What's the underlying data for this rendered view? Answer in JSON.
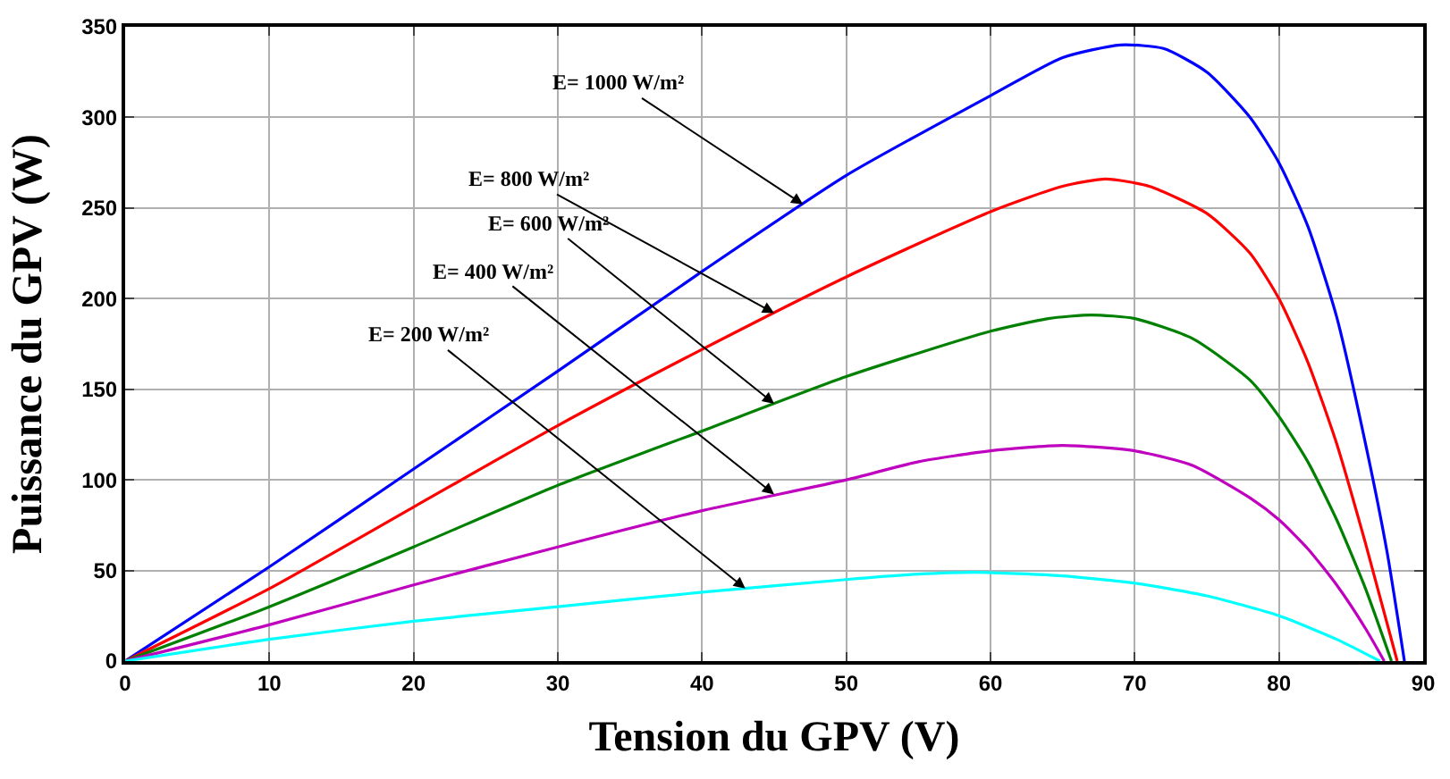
{
  "chart_data": {
    "type": "line",
    "xlabel": "Tension du GPV (V)",
    "ylabel": "Puissance du GPV (W)",
    "xlim": [
      0,
      90
    ],
    "xticks": [
      0,
      10,
      20,
      30,
      40,
      50,
      60,
      70,
      80,
      90
    ],
    "ylim": [
      0,
      350
    ],
    "yticks": [
      0,
      50,
      100,
      150,
      200,
      250,
      300,
      350
    ],
    "grid": true,
    "marker": "none",
    "line_style": "solid",
    "series": [
      {
        "color": "#0000ff",
        "x": [
          0,
          10,
          20,
          30,
          40,
          50,
          60,
          65,
          69,
          72,
          75,
          78,
          80,
          82,
          84,
          86,
          87.5,
          88.7
        ],
        "values": [
          0,
          52,
          106,
          160,
          215,
          268,
          312,
          333,
          340,
          338,
          325,
          300,
          275,
          240,
          190,
          120,
          60,
          0
        ]
      },
      {
        "color": "#ff0000",
        "x": [
          0,
          10,
          20,
          30,
          40,
          50,
          60,
          65,
          68,
          71,
          75,
          78,
          80,
          82,
          84,
          86,
          88.2
        ],
        "values": [
          0,
          40,
          85,
          130,
          172,
          212,
          248,
          262,
          266,
          262,
          247,
          225,
          200,
          165,
          120,
          65,
          0
        ]
      },
      {
        "color": "#008000",
        "x": [
          0,
          10,
          20,
          30,
          40,
          50,
          60,
          64,
          67,
          70,
          74,
          78,
          80,
          82,
          84,
          86,
          87.8
        ],
        "values": [
          0,
          30,
          63,
          97,
          127,
          157,
          182,
          189,
          191,
          189,
          178,
          155,
          135,
          110,
          78,
          40,
          0
        ]
      },
      {
        "color": "#bf00bf",
        "x": [
          0,
          10,
          20,
          30,
          40,
          50,
          55,
          60,
          65,
          70,
          74,
          78,
          80,
          82,
          84,
          86,
          87.3
        ],
        "values": [
          0,
          20,
          42,
          63,
          83,
          100,
          110,
          116,
          119,
          116,
          108,
          90,
          78,
          62,
          42,
          18,
          0
        ]
      },
      {
        "color": "#00ffff",
        "x": [
          0,
          10,
          20,
          30,
          40,
          50,
          55,
          59,
          65,
          70,
          75,
          80,
          84,
          87
        ],
        "values": [
          0,
          12,
          22,
          30,
          38,
          45,
          48,
          49,
          47,
          43,
          36,
          25,
          12,
          0
        ]
      }
    ],
    "annotations": [
      {
        "text": "E= 1000 W/m²",
        "x": 47,
        "y": 252
      },
      {
        "text": "E= 800 W/m²",
        "x": 45,
        "y": 192
      },
      {
        "text": "E= 600 W/m²",
        "x": 45,
        "y": 142
      },
      {
        "text": "E= 400 W/m²",
        "x": 45,
        "y": 92
      },
      {
        "text": "E= 200 W/m²",
        "x": 43,
        "y": 40
      }
    ]
  }
}
